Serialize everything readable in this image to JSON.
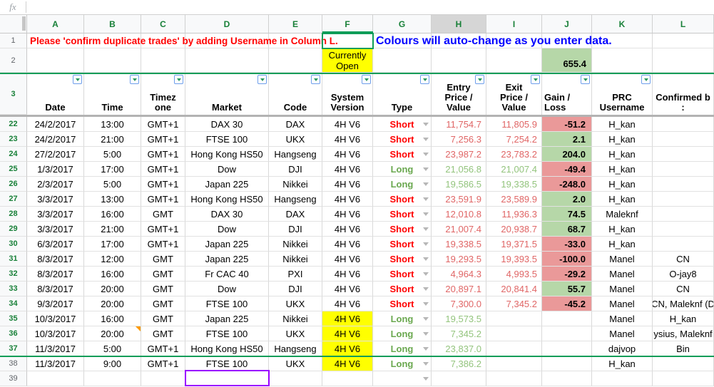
{
  "formula_bar": {
    "label": "fx",
    "value": ""
  },
  "banners": {
    "red_notice": "Please 'confirm duplicate trades' by adding Username in Column L.",
    "blue_notice": "Colours will auto-change as you enter data."
  },
  "frozen_cells": {
    "currently_open": "Currently\nOpen",
    "running_total": "655.4"
  },
  "columns": {
    "letters": [
      "A",
      "B",
      "C",
      "D",
      "E",
      "F",
      "G",
      "H",
      "I",
      "J",
      "K",
      "L"
    ],
    "highlighted_letter": "H"
  },
  "header_row": {
    "num": "3",
    "cells": [
      {
        "key": "date",
        "label": "Date",
        "filter": true
      },
      {
        "key": "time",
        "label": "Time",
        "filter": true
      },
      {
        "key": "tz",
        "label": "Timez\none",
        "filter": true
      },
      {
        "key": "market",
        "label": "Market",
        "filter": true
      },
      {
        "key": "code",
        "label": "Code",
        "filter": true
      },
      {
        "key": "system",
        "label": "System\nVersion",
        "filter": true
      },
      {
        "key": "type",
        "label": "Type",
        "filter": true
      },
      {
        "key": "entry",
        "label": "Entry\nPrice /\nValue",
        "filter": true
      },
      {
        "key": "exit",
        "label": "Exit\nPrice /\nValue",
        "filter": true
      },
      {
        "key": "gain",
        "label": "Gain /\nLoss",
        "filter": true,
        "align": "left"
      },
      {
        "key": "user",
        "label": "PRC\nUsername",
        "filter": true
      },
      {
        "key": "confirmed",
        "label": "Confirmed b\n:",
        "filter": false
      }
    ]
  },
  "rows": [
    {
      "num": "22",
      "green": true,
      "date": "24/2/2017",
      "time": "13:00",
      "tz": "GMT+1",
      "market": "DAX 30",
      "code": "DAX",
      "system": "4H V6",
      "sys_yellow": false,
      "type": "Short",
      "entry": "11,754.7",
      "exit": "11,805.9",
      "gain": "-51.2",
      "user": "H_kan",
      "confirmed": ""
    },
    {
      "num": "23",
      "green": true,
      "date": "24/2/2017",
      "time": "21:00",
      "tz": "GMT+1",
      "market": "FTSE 100",
      "code": "UKX",
      "system": "4H V6",
      "sys_yellow": false,
      "type": "Short",
      "entry": "7,256.3",
      "exit": "7,254.2",
      "gain": "2.1",
      "user": "H_kan",
      "confirmed": ""
    },
    {
      "num": "24",
      "green": true,
      "date": "27/2/2017",
      "time": "5:00",
      "tz": "GMT+1",
      "market": "Hong Kong HS50",
      "code": "Hangseng",
      "system": "4H V6",
      "sys_yellow": false,
      "type": "Short",
      "entry": "23,987.2",
      "exit": "23,783.2",
      "gain": "204.0",
      "user": "H_kan",
      "confirmed": ""
    },
    {
      "num": "25",
      "green": true,
      "date": "1/3/2017",
      "time": "17:00",
      "tz": "GMT+1",
      "market": "Dow",
      "code": "DJI",
      "system": "4H V6",
      "sys_yellow": false,
      "type": "Long",
      "entry": "21,056.8",
      "exit": "21,007.4",
      "gain": "-49.4",
      "user": "H_kan",
      "confirmed": ""
    },
    {
      "num": "26",
      "green": true,
      "date": "2/3/2017",
      "time": "5:00",
      "tz": "GMT+1",
      "market": "Japan 225",
      "code": "Nikkei",
      "system": "4H V6",
      "sys_yellow": false,
      "type": "Long",
      "entry": "19,586.5",
      "exit": "19,338.5",
      "gain": "-248.0",
      "user": "H_kan",
      "confirmed": ""
    },
    {
      "num": "27",
      "green": true,
      "date": "3/3/2017",
      "time": "13:00",
      "tz": "GMT+1",
      "market": "Hong Kong HS50",
      "code": "Hangseng",
      "system": "4H V6",
      "sys_yellow": false,
      "type": "Short",
      "entry": "23,591.9",
      "exit": "23,589.9",
      "gain": "2.0",
      "user": "H_kan",
      "confirmed": ""
    },
    {
      "num": "28",
      "green": true,
      "date": "3/3/2017",
      "time": "16:00",
      "tz": "GMT",
      "market": "DAX 30",
      "code": "DAX",
      "system": "4H V6",
      "sys_yellow": false,
      "type": "Short",
      "entry": "12,010.8",
      "exit": "11,936.3",
      "gain": "74.5",
      "user": "Maleknf",
      "confirmed": ""
    },
    {
      "num": "29",
      "green": true,
      "date": "3/3/2017",
      "time": "21:00",
      "tz": "GMT+1",
      "market": "Dow",
      "code": "DJI",
      "system": "4H V6",
      "sys_yellow": false,
      "type": "Short",
      "entry": "21,007.4",
      "exit": "20,938.7",
      "gain": "68.7",
      "user": "H_kan",
      "confirmed": ""
    },
    {
      "num": "30",
      "green": true,
      "date": "6/3/2017",
      "time": "17:00",
      "tz": "GMT+1",
      "market": "Japan 225",
      "code": "Nikkei",
      "system": "4H V6",
      "sys_yellow": false,
      "type": "Short",
      "entry": "19,338.5",
      "exit": "19,371.5",
      "gain": "-33.0",
      "user": "H_kan",
      "confirmed": ""
    },
    {
      "num": "31",
      "green": true,
      "date": "8/3/2017",
      "time": "12:00",
      "tz": "GMT",
      "market": "Japan 225",
      "code": "Nikkei",
      "system": "4H V6",
      "sys_yellow": false,
      "type": "Short",
      "entry": "19,293.5",
      "exit": "19,393.5",
      "gain": "-100.0",
      "user": "Manel",
      "confirmed": "CN"
    },
    {
      "num": "32",
      "green": true,
      "date": "8/3/2017",
      "time": "16:00",
      "tz": "GMT",
      "market": "Fr CAC 40",
      "code": "PXI",
      "system": "4H V6",
      "sys_yellow": false,
      "type": "Short",
      "entry": "4,964.3",
      "exit": "4,993.5",
      "gain": "-29.2",
      "user": "Manel",
      "confirmed": "O-jay8"
    },
    {
      "num": "33",
      "green": true,
      "date": "8/3/2017",
      "time": "20:00",
      "tz": "GMT",
      "market": "Dow",
      "code": "DJI",
      "system": "4H V6",
      "sys_yellow": false,
      "type": "Short",
      "entry": "20,897.1",
      "exit": "20,841.4",
      "gain": "55.7",
      "user": "Manel",
      "confirmed": "CN"
    },
    {
      "num": "34",
      "green": true,
      "date": "9/3/2017",
      "time": "20:00",
      "tz": "GMT",
      "market": "FTSE 100",
      "code": "UKX",
      "system": "4H V6",
      "sys_yellow": false,
      "type": "Short",
      "entry": "7,300.0",
      "exit": "7,345.2",
      "gain": "-45.2",
      "user": "Manel",
      "confirmed": "CN, Maleknf (D"
    },
    {
      "num": "35",
      "green": true,
      "date": "10/3/2017",
      "time": "16:00",
      "tz": "GMT",
      "market": "Japan 225",
      "code": "Nikkei",
      "system": "4H V6",
      "sys_yellow": true,
      "type": "Long",
      "entry": "19,573.5",
      "exit": "",
      "gain": "",
      "user": "Manel",
      "confirmed": "H_kan"
    },
    {
      "num": "36",
      "green": true,
      "date": "10/3/2017",
      "time": "20:00",
      "tz": "GMT",
      "market": "FTSE 100",
      "code": "UKX",
      "system": "4H V6",
      "sys_yellow": true,
      "type": "Long",
      "entry": "7,345.2",
      "exit": "",
      "gain": "",
      "user": "Manel",
      "confirmed": "ysius, Maleknf",
      "note": true
    },
    {
      "num": "37",
      "green": true,
      "date": "11/3/2017",
      "time": "5:00",
      "tz": "GMT+1",
      "market": "Hong Kong HS50",
      "code": "Hangseng",
      "system": "4H V6",
      "sys_yellow": true,
      "type": "Long",
      "entry": "23,837.0",
      "exit": "",
      "gain": "",
      "user": "dajvop",
      "confirmed": "Bin"
    },
    {
      "num": "38",
      "green": false,
      "date": "11/3/2017",
      "time": "9:00",
      "tz": "GMT+1",
      "market": "FTSE 100",
      "code": "UKX",
      "system": "4H V6",
      "sys_yellow": true,
      "type": "Long",
      "entry": "7,386.2",
      "exit": "",
      "gain": "",
      "user": "H_kan",
      "confirmed": ""
    },
    {
      "num": "39",
      "green": false,
      "date": "",
      "time": "",
      "tz": "",
      "market": "",
      "code": "",
      "system": "",
      "sys_yellow": false,
      "type": "",
      "entry": "",
      "exit": "",
      "gain": "",
      "user": "",
      "confirmed": "",
      "empty_dropdown": true
    }
  ],
  "colors": {
    "column_letter_green": "#188038",
    "selection_green": "#0f9d58",
    "banner_red": "#ff0000",
    "banner_blue": "#0000ff",
    "highlight_yellow": "#ffff00",
    "gain_positive_bg": "#b6d7a8",
    "gain_negative_bg": "#ea9999",
    "short_label": "#ff0000",
    "short_value": "#e06666",
    "long_label": "#6aa84f",
    "long_value": "#93c47d",
    "collaborator_purple": "#9900ff",
    "note_orange": "#ff9900",
    "highlighted_header_bg": "#d6d6d6"
  }
}
